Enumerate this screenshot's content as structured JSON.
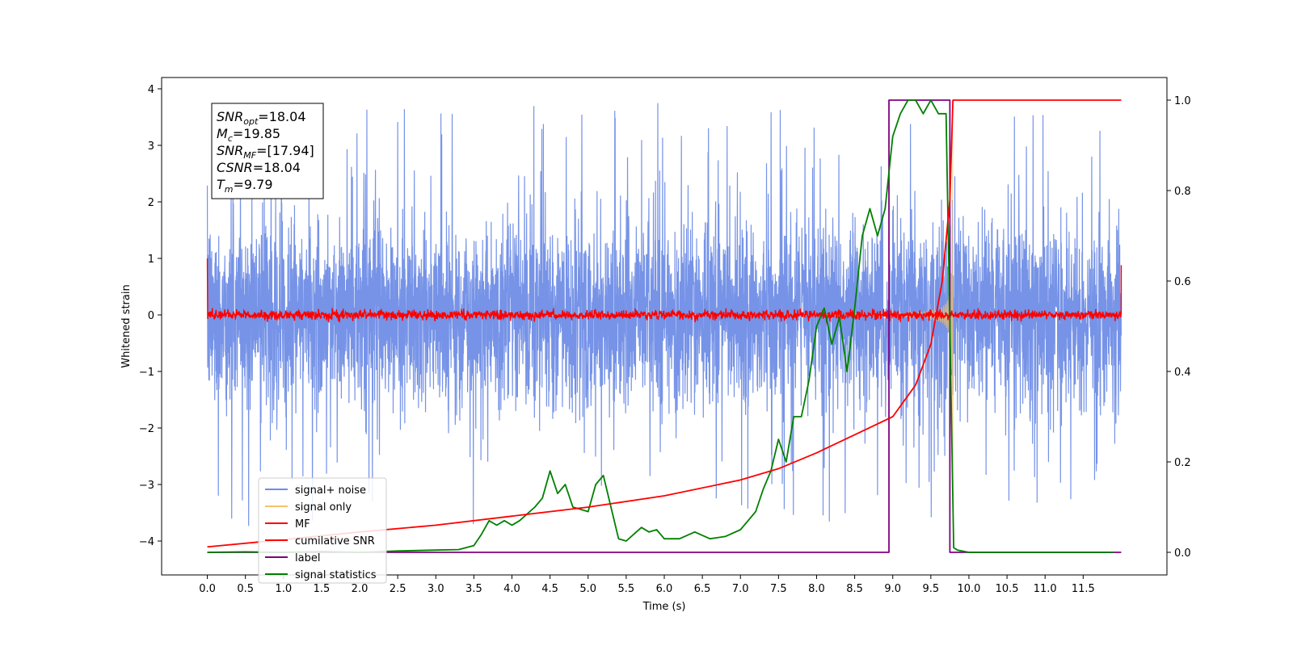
{
  "chart_data": {
    "type": "line",
    "xlabel": "Time (s)",
    "ylabel": "Whitened strain",
    "xlim": [
      -0.6,
      12.6
    ],
    "ylim": [
      -4.6,
      4.2
    ],
    "ylim_right": [
      -0.05,
      1.05
    ],
    "x_ticks": [
      "0.0",
      "0.5",
      "1.0",
      "1.5",
      "2.0",
      "2.5",
      "3.0",
      "3.5",
      "4.0",
      "4.5",
      "5.0",
      "5.5",
      "6.0",
      "6.5",
      "7.0",
      "7.5",
      "8.0",
      "8.5",
      "9.0",
      "9.5",
      "10.0",
      "10.5",
      "11.0",
      "11.5"
    ],
    "y_ticks": [
      "4",
      "3",
      "2",
      "1",
      "0",
      "−1",
      "−2",
      "−3",
      "−4"
    ],
    "y_ticks_right": [
      "1.0",
      "0.8",
      "0.6",
      "0.4",
      "0.2",
      "0.0"
    ],
    "grid": false,
    "legend_position": "lower-left",
    "annotation": {
      "lines": [
        {
          "var": "SNR",
          "sub": "opt",
          "value": "=18.04"
        },
        {
          "var": "M",
          "sub": "c",
          "value": "=19.85"
        },
        {
          "var": "SNR",
          "sub": "MF",
          "value": "=[17.94]"
        },
        {
          "var": "CSNR",
          "sub": "",
          "value": "=18.04"
        },
        {
          "var": "T",
          "sub": "m",
          "value": "=9.79"
        }
      ]
    },
    "series": [
      {
        "name": "signal+ noise",
        "color": "#6f8de6",
        "axis": "left",
        "kind": "noise",
        "x_range": [
          0.0,
          12.0
        ],
        "amplitude": 1.1,
        "peaks": 3.75
      },
      {
        "name": "signal only",
        "color": "#f5c26b",
        "axis": "left",
        "kind": "chirp",
        "x_range": [
          0.0,
          9.79
        ],
        "merger_time": 9.79,
        "peak_amplitude": 3.75
      },
      {
        "name": "MF",
        "color": "#ff0000",
        "axis": "left",
        "kind": "noise",
        "x_range": [
          0.0,
          12.0
        ],
        "amplitude": 0.07,
        "start_value": 1.0,
        "end_value": 0.88
      },
      {
        "name": "cumilative SNR",
        "color": "#ff0000",
        "axis": "right",
        "x": [
          0.0,
          1.0,
          2.0,
          3.0,
          4.0,
          5.0,
          6.0,
          7.0,
          7.5,
          8.0,
          8.5,
          9.0,
          9.3,
          9.5,
          9.65,
          9.75,
          9.79,
          9.8,
          12.0
        ],
        "y": [
          0.012,
          0.028,
          0.045,
          0.06,
          0.08,
          0.1,
          0.125,
          0.16,
          0.185,
          0.22,
          0.26,
          0.3,
          0.37,
          0.46,
          0.6,
          0.78,
          1.0,
          1.0,
          1.0
        ]
      },
      {
        "name": "label",
        "color": "#800080",
        "axis": "right",
        "x": [
          0.0,
          8.95,
          8.95,
          9.75,
          9.75,
          12.0
        ],
        "y": [
          0.0,
          0.0,
          1.0,
          1.0,
          0.0,
          0.0
        ]
      },
      {
        "name": "signal statistics",
        "color": "#008000",
        "axis": "right",
        "x": [
          0.0,
          0.5,
          1.0,
          1.5,
          2.0,
          2.5,
          3.0,
          3.3,
          3.5,
          3.6,
          3.7,
          3.8,
          3.9,
          4.0,
          4.1,
          4.2,
          4.3,
          4.4,
          4.5,
          4.6,
          4.7,
          4.8,
          4.9,
          5.0,
          5.1,
          5.2,
          5.3,
          5.4,
          5.5,
          5.6,
          5.7,
          5.8,
          5.9,
          6.0,
          6.2,
          6.4,
          6.6,
          6.8,
          7.0,
          7.1,
          7.2,
          7.3,
          7.4,
          7.5,
          7.6,
          7.7,
          7.8,
          7.9,
          8.0,
          8.1,
          8.2,
          8.3,
          8.4,
          8.5,
          8.6,
          8.7,
          8.8,
          8.9,
          9.0,
          9.1,
          9.2,
          9.3,
          9.4,
          9.5,
          9.6,
          9.7,
          9.75,
          9.8,
          9.85,
          10.0,
          11.0,
          11.9
        ],
        "y": [
          0.0,
          0.001,
          0.0,
          0.002,
          0.0,
          0.003,
          0.005,
          0.006,
          0.015,
          0.04,
          0.07,
          0.06,
          0.07,
          0.06,
          0.07,
          0.085,
          0.1,
          0.12,
          0.18,
          0.13,
          0.15,
          0.1,
          0.095,
          0.09,
          0.15,
          0.17,
          0.1,
          0.03,
          0.025,
          0.04,
          0.055,
          0.045,
          0.05,
          0.03,
          0.03,
          0.045,
          0.03,
          0.035,
          0.05,
          0.07,
          0.09,
          0.14,
          0.18,
          0.25,
          0.2,
          0.3,
          0.3,
          0.38,
          0.5,
          0.54,
          0.46,
          0.52,
          0.4,
          0.54,
          0.7,
          0.76,
          0.7,
          0.76,
          0.92,
          0.97,
          1.0,
          1.0,
          0.97,
          1.0,
          0.97,
          0.97,
          0.5,
          0.01,
          0.005,
          0.0,
          0.0,
          0.0
        ]
      }
    ]
  }
}
